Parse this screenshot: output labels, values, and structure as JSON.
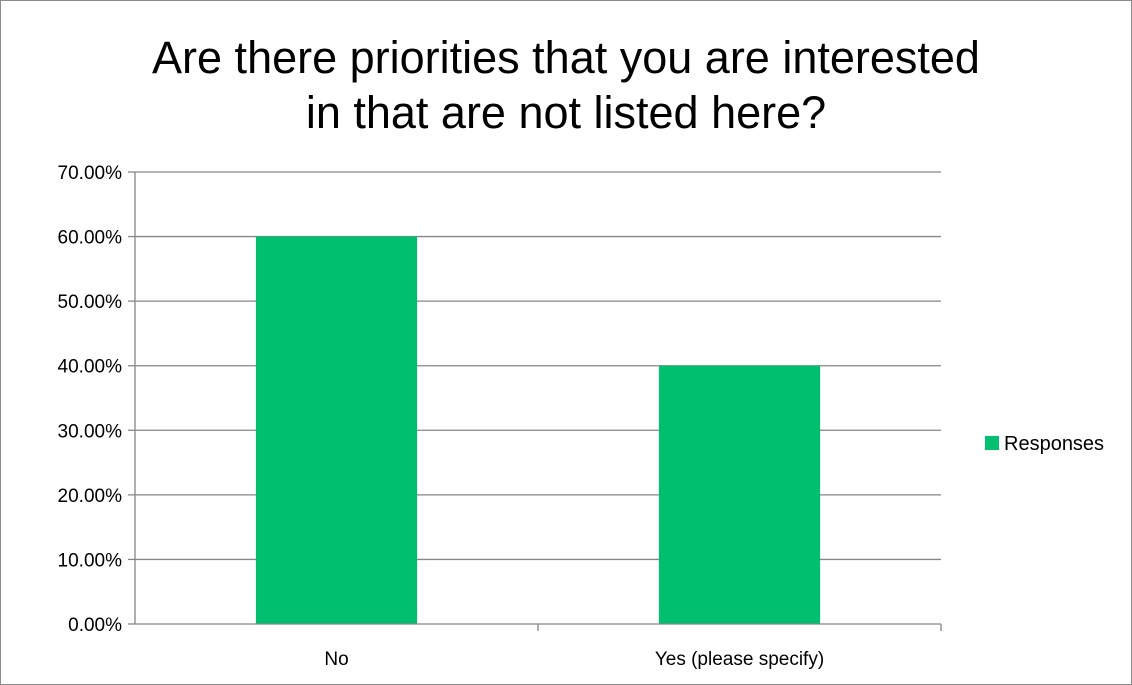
{
  "chart_data": {
    "type": "bar",
    "title_lines": [
      "Are there priorities that you are interested",
      "in that are not listed here?"
    ],
    "categories": [
      "No",
      "Yes (please specify)"
    ],
    "series": [
      {
        "name": "Responses",
        "values": [
          0.6,
          0.4
        ],
        "color": "#00BF6F"
      }
    ],
    "ylim": [
      0,
      0.7
    ],
    "yticks": [
      0,
      0.1,
      0.2,
      0.3,
      0.4,
      0.5,
      0.6,
      0.7
    ],
    "ytick_labels": [
      "0.00%",
      "10.00%",
      "20.00%",
      "30.00%",
      "40.00%",
      "50.00%",
      "60.00%",
      "70.00%"
    ],
    "grid": true,
    "legend_position": "right",
    "grid_color": "#868686",
    "axis_color": "#868686"
  }
}
